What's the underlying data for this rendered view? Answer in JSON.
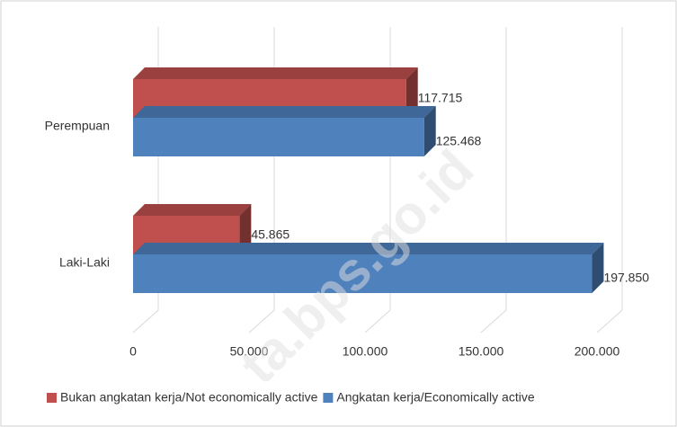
{
  "chart_data": {
    "type": "bar3d",
    "categories": [
      "Perempuan",
      "Laki-Laki"
    ],
    "series": [
      {
        "name": "Bukan angkatan kerja/Not economically active",
        "color": "#c0504d",
        "values": [
          117715,
          45865
        ],
        "value_labels": [
          "117.715",
          "45.865"
        ]
      },
      {
        "name": "Angkatan kerja/Economically active",
        "color": "#4f81bd",
        "values": [
          125468,
          197850
        ],
        "value_labels": [
          "125.468",
          "197.850"
        ]
      }
    ],
    "xlim": [
      0,
      200000
    ],
    "xticks": [
      0,
      {
        "value": 50000,
        "label": "50.000"
      },
      {
        "value": 100000,
        "label": "100.000"
      },
      {
        "value": 150000,
        "label": "150.000"
      },
      {
        "value": 200000,
        "label": "200.000"
      }
    ],
    "grid": true,
    "legend": "bottom",
    "watermark": "ta.bps.go.id"
  }
}
